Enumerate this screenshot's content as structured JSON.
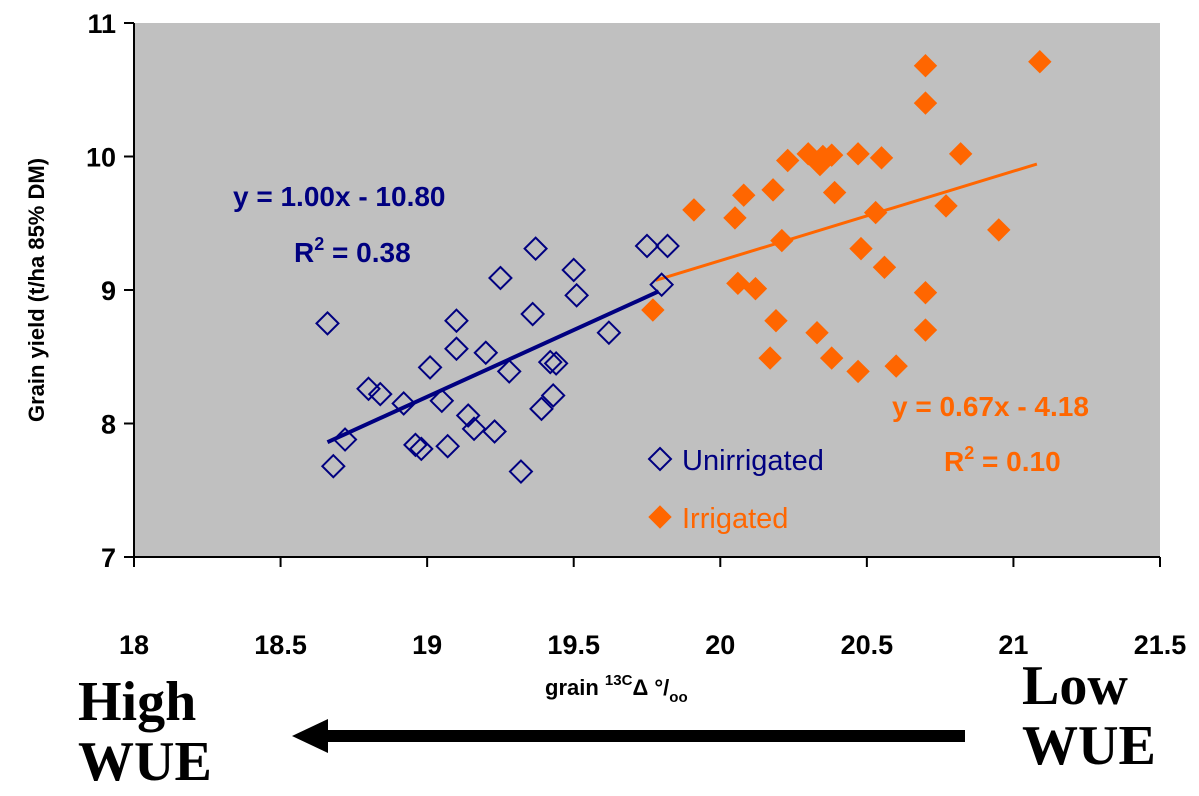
{
  "chart_data": {
    "type": "scatter",
    "xlim": [
      18,
      21.5
    ],
    "ylim": [
      7,
      11
    ],
    "x_ticks": [
      "18",
      "18.5",
      "19",
      "19.5",
      "20",
      "20.5",
      "21",
      "21.5"
    ],
    "y_ticks": [
      "7",
      "8",
      "9",
      "10",
      "11"
    ],
    "ylabel": "Grain yield (t/ha 85% DM)",
    "xlabel": {
      "prefix": "grain ",
      "sup": "13C",
      "mid": "Δ °/",
      "sub": "oo"
    },
    "grid": false,
    "legend_position": "bottom-center-right",
    "series": [
      {
        "name": "Unirrigated",
        "marker": "diamond-open",
        "color": "#000080",
        "points": [
          [
            18.66,
            8.75
          ],
          [
            18.68,
            7.68
          ],
          [
            18.72,
            7.88
          ],
          [
            18.8,
            8.26
          ],
          [
            18.84,
            8.22
          ],
          [
            18.92,
            8.15
          ],
          [
            18.96,
            7.84
          ],
          [
            18.98,
            7.81
          ],
          [
            19.01,
            8.42
          ],
          [
            19.05,
            8.17
          ],
          [
            19.07,
            7.83
          ],
          [
            19.1,
            8.56
          ],
          [
            19.1,
            8.77
          ],
          [
            19.14,
            8.06
          ],
          [
            19.16,
            7.96
          ],
          [
            19.2,
            8.53
          ],
          [
            19.23,
            7.94
          ],
          [
            19.25,
            9.09
          ],
          [
            19.28,
            8.39
          ],
          [
            19.32,
            7.64
          ],
          [
            19.36,
            8.82
          ],
          [
            19.37,
            9.31
          ],
          [
            19.39,
            8.11
          ],
          [
            19.42,
            8.46
          ],
          [
            19.43,
            8.21
          ],
          [
            19.44,
            8.45
          ],
          [
            19.5,
            9.15
          ],
          [
            19.51,
            8.96
          ],
          [
            19.62,
            8.68
          ],
          [
            19.75,
            9.33
          ],
          [
            19.8,
            9.04
          ],
          [
            19.82,
            9.33
          ]
        ],
        "trend": {
          "x": [
            18.66,
            19.79
          ],
          "label": "y = 1.00x - 10.80",
          "r2_prefix": "R",
          "r2_exp": "2",
          "r2_value": " = 0.38"
        }
      },
      {
        "name": "Irrigated",
        "marker": "diamond-filled",
        "color": "#ff6600",
        "points": [
          [
            19.77,
            8.85
          ],
          [
            19.91,
            9.6
          ],
          [
            20.05,
            9.54
          ],
          [
            20.06,
            9.05
          ],
          [
            20.08,
            9.71
          ],
          [
            20.12,
            9.01
          ],
          [
            20.17,
            8.49
          ],
          [
            20.18,
            9.75
          ],
          [
            20.19,
            8.77
          ],
          [
            20.21,
            9.37
          ],
          [
            20.23,
            9.97
          ],
          [
            20.3,
            10.02
          ],
          [
            20.33,
            8.68
          ],
          [
            20.34,
            9.94
          ],
          [
            20.35,
            10.0
          ],
          [
            20.38,
            10.01
          ],
          [
            20.38,
            8.49
          ],
          [
            20.39,
            9.73
          ],
          [
            20.47,
            10.02
          ],
          [
            20.47,
            8.39
          ],
          [
            20.48,
            9.31
          ],
          [
            20.53,
            9.58
          ],
          [
            20.55,
            9.99
          ],
          [
            20.56,
            9.17
          ],
          [
            20.6,
            8.43
          ],
          [
            20.7,
            10.68
          ],
          [
            20.7,
            10.4
          ],
          [
            20.7,
            8.98
          ],
          [
            20.7,
            8.7
          ],
          [
            20.77,
            9.63
          ],
          [
            20.82,
            10.02
          ],
          [
            20.95,
            9.45
          ],
          [
            21.09,
            10.71
          ]
        ],
        "trend": {
          "x": [
            19.78,
            21.08
          ],
          "label": "y = 0.67x - 4.18",
          "r2_prefix": "R",
          "r2_exp": "2",
          "r2_value": " = 0.10"
        }
      }
    ]
  },
  "annotations": {
    "left_label": [
      "High",
      "WUE"
    ],
    "right_label": [
      "Low",
      "WUE"
    ],
    "arrow_direction": "left"
  }
}
